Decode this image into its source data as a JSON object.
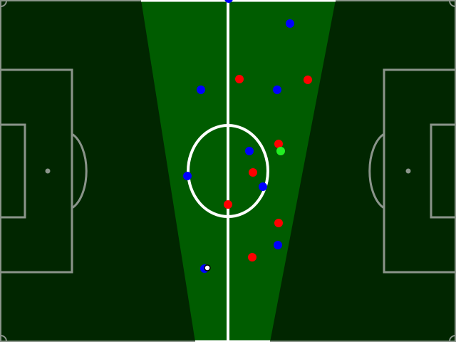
{
  "colors": {
    "pitch_dark": "#012600",
    "pitch_highlight": "#005c00",
    "line_white": "#ffffff",
    "line_gray": "#8a948a",
    "team_blue": "#0000ff",
    "team_red": "#ff0000",
    "highlight_green": "#22ee22",
    "ball": "#ffffff"
  },
  "players": {
    "blue_count": 9,
    "red_count": 8,
    "highlighted_count": 1
  },
  "ball": {
    "visible": true
  }
}
